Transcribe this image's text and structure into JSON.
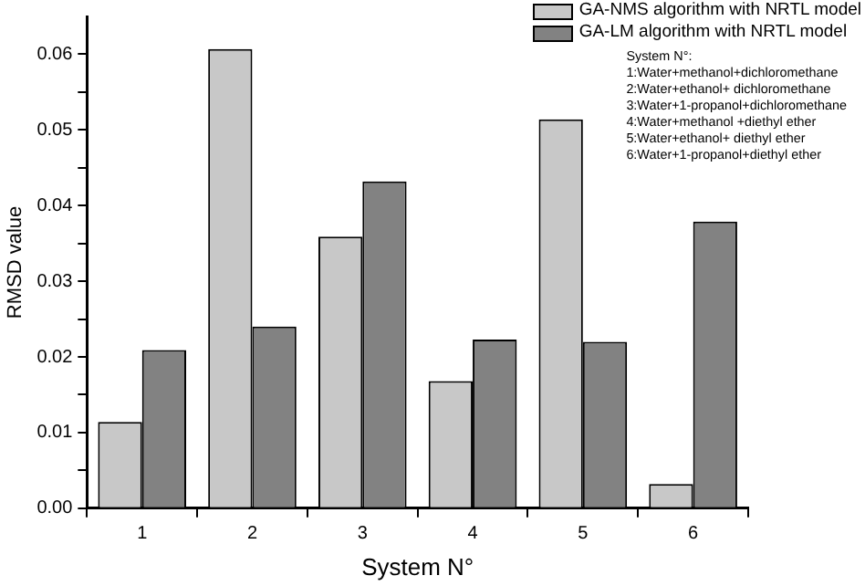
{
  "chart_data": {
    "type": "bar",
    "xlabel": "System N°",
    "ylabel": "RMSD value",
    "categories": [
      "1",
      "2",
      "3",
      "4",
      "5",
      "6"
    ],
    "series": [
      {
        "name": "GA-NMS algorithm with NRTL model",
        "color": "#c8c8c8",
        "values": [
          0.0114,
          0.0607,
          0.0359,
          0.0168,
          0.0514,
          0.0032
        ]
      },
      {
        "name": "GA-LM algorithm with NRTL model",
        "color": "#828282",
        "values": [
          0.0209,
          0.024,
          0.0432,
          0.0223,
          0.022,
          0.0379
        ]
      }
    ],
    "ylim": [
      0,
      0.065
    ],
    "yticks": [
      {
        "value": 0,
        "label": "0.00"
      },
      {
        "value": 0.005,
        "label": null
      },
      0.01,
      {
        "value": 0.015,
        "label": null
      },
      0.02,
      {
        "value": 0.025,
        "label": null
      },
      0.03,
      {
        "value": 0.035,
        "label": null
      },
      0.04,
      {
        "value": 0.045,
        "label": null
      },
      0.05,
      {
        "value": 0.055,
        "label": null
      },
      0.06
    ],
    "grid": false,
    "legend": "top right",
    "annotations": [
      "System N°:",
      "1:Water+methanol+dichloromethane",
      "2:Water+ethanol+ dichloromethane",
      "3:Water+1-propanol+dichloromethane",
      "4:Water+methanol +diethyl ether",
      "5:Water+ethanol+ diethyl ether",
      "6:Water+1-propanol+diethyl ether"
    ]
  }
}
